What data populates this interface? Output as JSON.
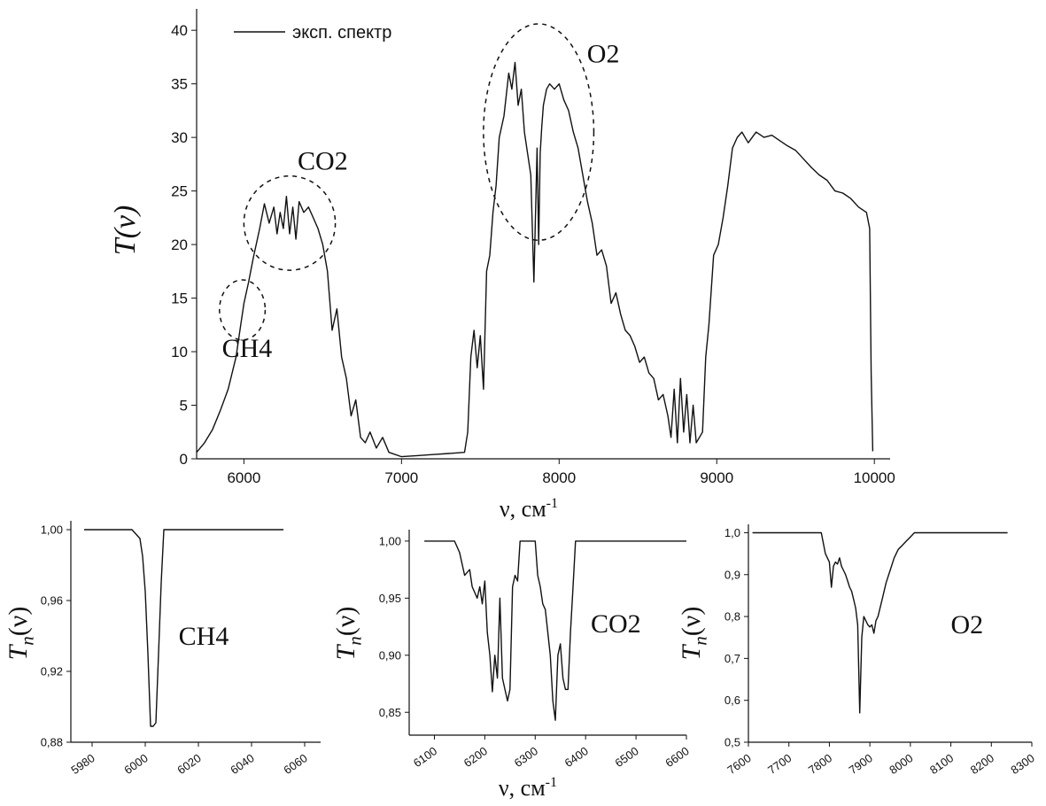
{
  "chart_data": [
    {
      "id": "main",
      "type": "line",
      "xlabel": "ν, см",
      "xlabel_sup": "-1",
      "ylabel": "T(ν)",
      "xlim": [
        5700,
        10100
      ],
      "ylim": [
        0,
        42
      ],
      "xticks": [
        6000,
        7000,
        8000,
        9000,
        10000
      ],
      "xtick_labels": [
        "6000",
        "7000",
        "8000",
        "9000",
        "10000"
      ],
      "yticks": [
        0,
        5,
        10,
        15,
        20,
        25,
        30,
        35,
        40
      ],
      "ytick_labels": [
        "0",
        "5",
        "10",
        "15",
        "20",
        "25",
        "30",
        "35",
        "40"
      ],
      "legend": {
        "position": "top-left",
        "label": "эксп. спектр"
      },
      "annotations": [
        {
          "text": "CH4",
          "x": 6020,
          "y": 9.5
        },
        {
          "text": "CO2",
          "x": 6500,
          "y": 27
        },
        {
          "text": "O2",
          "x": 8280,
          "y": 37
        }
      ],
      "highlight_ellipses": [
        {
          "label": "CH4",
          "cx": 5990,
          "cy": 13.9,
          "rx": 145,
          "ry": 2.8
        },
        {
          "label": "CO2",
          "cx": 6290,
          "cy": 22.0,
          "rx": 290,
          "ry": 4.4
        },
        {
          "label": "O2",
          "cx": 7870,
          "cy": 30.5,
          "rx": 350,
          "ry": 10.1
        }
      ],
      "series": [
        {
          "x": [
            5700,
            5750,
            5800,
            5850,
            5900,
            5950,
            5980,
            6000,
            6030,
            6060,
            6100,
            6130,
            6160,
            6190,
            6210,
            6230,
            6250,
            6270,
            6290,
            6310,
            6330,
            6350,
            6380,
            6410,
            6440,
            6470,
            6500,
            6530,
            6560,
            6590,
            6620,
            6650,
            6680,
            6710,
            6740,
            6770,
            6800,
            6840,
            6880,
            6920,
            7000,
            7100,
            7200,
            7300,
            7400,
            7420,
            7440,
            7460,
            7480,
            7500,
            7520,
            7540,
            7560,
            7580,
            7600,
            7620,
            7650,
            7680,
            7700,
            7720,
            7740,
            7760,
            7780,
            7800,
            7820,
            7840,
            7860,
            7870,
            7880,
            7890,
            7900,
            7920,
            7940,
            7970,
            8000,
            8030,
            8060,
            8090,
            8120,
            8150,
            8180,
            8210,
            8240,
            8270,
            8300,
            8330,
            8360,
            8390,
            8420,
            8450,
            8480,
            8510,
            8540,
            8570,
            8600,
            8630,
            8660,
            8690,
            8710,
            8730,
            8750,
            8770,
            8790,
            8810,
            8830,
            8850,
            8870,
            8890,
            8910,
            8930,
            8950,
            8980,
            9010,
            9040,
            9070,
            9100,
            9130,
            9160,
            9200,
            9250,
            9300,
            9350,
            9400,
            9450,
            9500,
            9550,
            9600,
            9650,
            9700,
            9750,
            9800,
            9850,
            9900,
            9950,
            9970,
            9980,
            9990
          ],
          "y": [
            0.6,
            1.5,
            2.7,
            4.5,
            6.5,
            9.5,
            12.5,
            14.5,
            16.5,
            18.8,
            21.5,
            23.8,
            22.0,
            23.5,
            21.0,
            23.0,
            21.5,
            24.5,
            21.0,
            23.5,
            20.5,
            24.0,
            23.0,
            23.5,
            22.5,
            21.5,
            20.0,
            17.5,
            12.0,
            14.0,
            9.5,
            7.5,
            4.0,
            5.5,
            2.0,
            1.5,
            2.5,
            1.0,
            2.0,
            0.6,
            0.2,
            0.3,
            0.4,
            0.5,
            0.6,
            2.5,
            9.5,
            12.0,
            8.5,
            11.5,
            6.5,
            17.5,
            19.0,
            23.0,
            25.5,
            30.0,
            32.0,
            36.0,
            34.5,
            37.0,
            33.0,
            34.5,
            30.5,
            28.5,
            26.5,
            16.5,
            29.0,
            20.0,
            28.5,
            31.0,
            33.0,
            34.5,
            35.0,
            34.5,
            35.0,
            33.5,
            32.5,
            30.5,
            29.0,
            26.5,
            24.0,
            22.0,
            19.0,
            19.5,
            18.0,
            14.5,
            15.5,
            13.5,
            12.0,
            11.5,
            10.5,
            9.0,
            9.5,
            8.0,
            7.5,
            5.5,
            6.0,
            4.0,
            2.0,
            6.5,
            1.5,
            7.5,
            2.5,
            6.0,
            1.5,
            5.0,
            1.5,
            2.0,
            2.5,
            9.5,
            12.5,
            19.0,
            20.0,
            22.5,
            25.5,
            29.0,
            30.0,
            30.5,
            29.5,
            30.5,
            30.0,
            30.2,
            29.7,
            29.2,
            28.8,
            28.0,
            27.2,
            26.5,
            26.0,
            25.0,
            24.8,
            24.3,
            23.5,
            23.0,
            21.5,
            8.0,
            0.7
          ]
        }
      ]
    },
    {
      "id": "ch4",
      "type": "line",
      "ylabel": "T",
      "ylabel_sub": "n",
      "ylabel_tail": "(ν)",
      "xlim": [
        5972,
        6066
      ],
      "ylim": [
        0.88,
        1.005
      ],
      "xticks": [
        5980,
        6000,
        6020,
        6040,
        6060
      ],
      "xtick_labels": [
        "5980",
        "6000",
        "6020",
        "6040",
        "6060"
      ],
      "yticks": [
        0.88,
        0.92,
        0.96,
        1.0
      ],
      "ytick_labels": [
        "0,88",
        "0,92",
        "0,96",
        "1,00"
      ],
      "annotations": [
        {
          "text": "CH4",
          "x": 6022,
          "y": 0.935
        }
      ],
      "series": [
        {
          "x": [
            5977,
            5995,
            5998,
            5999,
            6000,
            6001,
            6002,
            6003,
            6004,
            6005,
            6006,
            6007,
            6008,
            6052
          ],
          "y": [
            1.0,
            1.0,
            0.995,
            0.985,
            0.965,
            0.93,
            0.889,
            0.889,
            0.891,
            0.93,
            0.97,
            1.0,
            1.0,
            1.0
          ]
        }
      ]
    },
    {
      "id": "co2",
      "type": "line",
      "ylabel": "T",
      "ylabel_sub": "n",
      "ylabel_tail": "(ν)",
      "xlabel": "ν, см",
      "xlabel_sup": "-1",
      "xlim": [
        6050,
        6600
      ],
      "ylim": [
        0.83,
        1.01
      ],
      "xticks": [
        6100,
        6200,
        6300,
        6400,
        6500,
        6600
      ],
      "xtick_labels": [
        "6100",
        "6200",
        "6300",
        "6400",
        "6500",
        "6600"
      ],
      "yticks": [
        0.85,
        0.9,
        0.95,
        1.0
      ],
      "ytick_labels": [
        "0,85",
        "0,90",
        "0,95",
        "1,00"
      ],
      "annotations": [
        {
          "text": "CO2",
          "x": 6460,
          "y": 0.92
        }
      ],
      "series": [
        {
          "x": [
            6080,
            6140,
            6150,
            6160,
            6170,
            6175,
            6185,
            6190,
            6195,
            6200,
            6205,
            6210,
            6215,
            6220,
            6225,
            6230,
            6235,
            6240,
            6245,
            6250,
            6255,
            6260,
            6265,
            6270,
            6280,
            6300,
            6305,
            6310,
            6315,
            6320,
            6325,
            6330,
            6335,
            6340,
            6345,
            6350,
            6355,
            6360,
            6365,
            6370,
            6375,
            6380,
            6600
          ],
          "y": [
            1.0,
            1.0,
            0.99,
            0.97,
            0.975,
            0.96,
            0.95,
            0.96,
            0.945,
            0.965,
            0.92,
            0.9,
            0.868,
            0.9,
            0.88,
            0.95,
            0.88,
            0.87,
            0.86,
            0.87,
            0.96,
            0.97,
            0.965,
            1.0,
            1.0,
            1.0,
            0.97,
            0.96,
            0.945,
            0.94,
            0.92,
            0.9,
            0.86,
            0.843,
            0.9,
            0.91,
            0.88,
            0.87,
            0.87,
            0.92,
            0.96,
            1.0,
            1.0
          ]
        }
      ]
    },
    {
      "id": "o2",
      "type": "line",
      "ylabel": "T",
      "ylabel_sub": "n",
      "ylabel_tail": "(ν)",
      "xlim": [
        7600,
        8300
      ],
      "ylim": [
        0.5,
        1.02
      ],
      "xticks": [
        7600,
        7700,
        7800,
        7900,
        8000,
        8100,
        8200,
        8300
      ],
      "xtick_labels": [
        "7600",
        "7700",
        "7800",
        "7900",
        "8000",
        "8100",
        "8200",
        "8300"
      ],
      "yticks": [
        0.5,
        0.6,
        0.7,
        0.8,
        0.9,
        1.0
      ],
      "ytick_labels": [
        "0,5",
        "0,6",
        "0,7",
        "0,8",
        "0,9",
        "1,0"
      ],
      "annotations": [
        {
          "text": "O2",
          "x": 8140,
          "y": 0.76
        }
      ],
      "series": [
        {
          "x": [
            7610,
            7780,
            7790,
            7800,
            7805,
            7810,
            7815,
            7820,
            7825,
            7830,
            7835,
            7840,
            7845,
            7850,
            7855,
            7860,
            7865,
            7870,
            7875,
            7880,
            7885,
            7890,
            7895,
            7900,
            7905,
            7910,
            7915,
            7920,
            7930,
            7940,
            7950,
            7960,
            7970,
            7980,
            7990,
            8000,
            8010,
            8020,
            8240
          ],
          "y": [
            1.0,
            1.0,
            0.95,
            0.93,
            0.87,
            0.92,
            0.93,
            0.925,
            0.94,
            0.92,
            0.91,
            0.9,
            0.885,
            0.87,
            0.86,
            0.84,
            0.82,
            0.78,
            0.57,
            0.75,
            0.8,
            0.79,
            0.78,
            0.775,
            0.78,
            0.76,
            0.79,
            0.8,
            0.84,
            0.88,
            0.91,
            0.94,
            0.96,
            0.97,
            0.98,
            0.99,
            1.0,
            1.0,
            1.0
          ]
        }
      ]
    }
  ]
}
